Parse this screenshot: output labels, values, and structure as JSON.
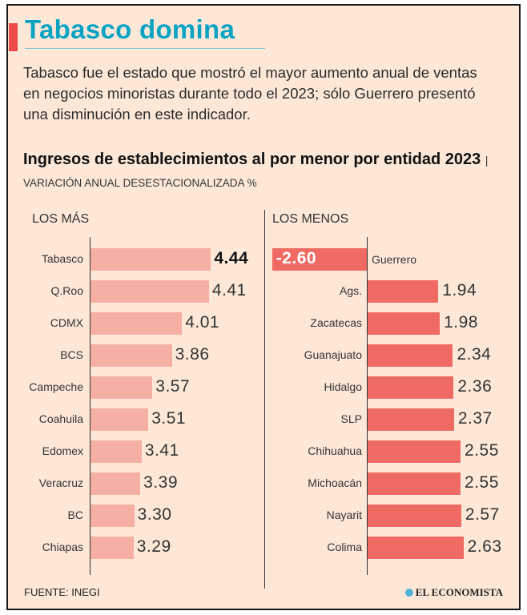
{
  "header": {
    "title": "Tabasco domina",
    "intro": "Tabasco fue el estado que mostró el mayor aumento anual de ventas en negocios minoristas durante todo el 2023; sólo Guerrero presentó una disminución en este indicador."
  },
  "chart_data": {
    "type": "bar",
    "title": "Ingresos de establecimientos al por menor por entidad 2023",
    "subtitle": "| VARIACIÓN ANUAL DESESTACIONALIZADA %",
    "panels": [
      {
        "name": "LOS MÁS",
        "categories": [
          "Tabasco",
          "Q.Roo",
          "CDMX",
          "BCS",
          "Campeche",
          "Coahuila",
          "Edomex",
          "Veracruz",
          "BC",
          "Chiapas"
        ],
        "values": [
          4.44,
          4.41,
          4.01,
          3.86,
          3.57,
          3.51,
          3.41,
          3.39,
          3.3,
          3.29
        ],
        "labels": [
          "4.44",
          "4.41",
          "4.01",
          "3.86",
          "3.57",
          "3.51",
          "3.41",
          "3.39",
          "3.30",
          "3.29"
        ],
        "color": "#f5b0a3"
      },
      {
        "name": "LOS MENOS",
        "categories": [
          "Guerrero",
          "Ags.",
          "Zacatecas",
          "Guanajuato",
          "Hidalgo",
          "SLP",
          "Chihuahua",
          "Michoacán",
          "Nayarit",
          "Colima"
        ],
        "values": [
          -2.6,
          1.94,
          1.98,
          2.34,
          2.36,
          2.37,
          2.55,
          2.55,
          2.57,
          2.63
        ],
        "labels": [
          "-2.60",
          "1.94",
          "1.98",
          "2.34",
          "2.36",
          "2.37",
          "2.55",
          "2.55",
          "2.57",
          "2.63"
        ],
        "color": "#ef6a62"
      }
    ]
  },
  "footer": {
    "source": "FUENTE: INEGI",
    "brand": "EL ECONOMISTA"
  }
}
